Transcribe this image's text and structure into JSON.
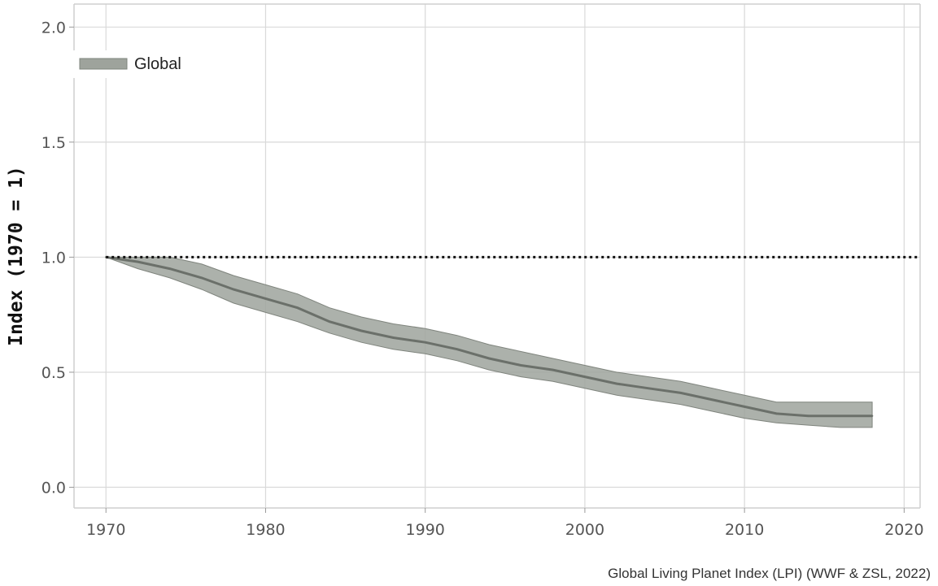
{
  "chart_data": {
    "type": "area",
    "title": "",
    "xlabel": "",
    "ylabel": "Index (1970 = 1)",
    "xlim": [
      1968,
      2021
    ],
    "ylim": [
      -0.09,
      2.1
    ],
    "x_ticks": [
      1970,
      1980,
      1990,
      2000,
      2010,
      2020
    ],
    "y_ticks": [
      0.0,
      0.5,
      1.0,
      1.5,
      2.0
    ],
    "y_tick_labels": [
      "0.0",
      "0.5",
      "1.0",
      "1.5",
      "2.0"
    ],
    "grid": true,
    "legend": {
      "placement": "top-left",
      "entries": [
        "Global"
      ]
    },
    "reference_line": {
      "y": 1.0,
      "style": "dotted"
    },
    "series": [
      {
        "name": "Global",
        "color": "#6b706a",
        "band_color": "#9ea39c",
        "x": [
          1970,
          1972,
          1974,
          1976,
          1978,
          1980,
          1982,
          1984,
          1986,
          1988,
          1990,
          1992,
          1994,
          1996,
          1998,
          2000,
          2002,
          2004,
          2006,
          2008,
          2010,
          2012,
          2014,
          2016,
          2018
        ],
        "y": [
          1.0,
          0.98,
          0.95,
          0.91,
          0.86,
          0.82,
          0.78,
          0.72,
          0.68,
          0.65,
          0.63,
          0.6,
          0.56,
          0.53,
          0.51,
          0.48,
          0.45,
          0.43,
          0.41,
          0.38,
          0.35,
          0.32,
          0.31,
          0.31,
          0.31
        ],
        "lower": [
          1.0,
          0.95,
          0.91,
          0.86,
          0.8,
          0.76,
          0.72,
          0.67,
          0.63,
          0.6,
          0.58,
          0.55,
          0.51,
          0.48,
          0.46,
          0.43,
          0.4,
          0.38,
          0.36,
          0.33,
          0.3,
          0.28,
          0.27,
          0.26,
          0.26
        ],
        "upper": [
          1.0,
          1.0,
          1.0,
          0.97,
          0.92,
          0.88,
          0.84,
          0.78,
          0.74,
          0.71,
          0.69,
          0.66,
          0.62,
          0.59,
          0.56,
          0.53,
          0.5,
          0.48,
          0.46,
          0.43,
          0.4,
          0.37,
          0.37,
          0.37,
          0.37
        ]
      }
    ]
  },
  "source_note": "Global Living Planet Index (LPI) (WWF & ZSL, 2022)"
}
